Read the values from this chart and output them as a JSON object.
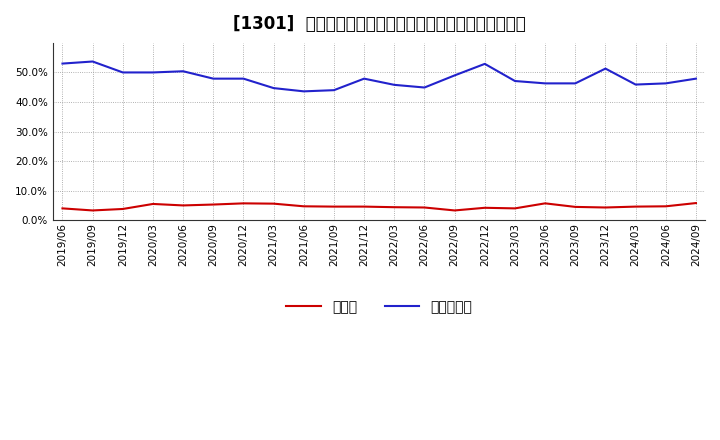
{
  "title": "[1301]  現預金、有利子負債の総資産に対する比率の推移",
  "x_labels": [
    "2019/06",
    "2019/09",
    "2019/12",
    "2020/03",
    "2020/06",
    "2020/09",
    "2020/12",
    "2021/03",
    "2021/06",
    "2021/09",
    "2021/12",
    "2022/03",
    "2022/06",
    "2022/09",
    "2022/12",
    "2023/03",
    "2023/06",
    "2023/09",
    "2023/12",
    "2024/03",
    "2024/06",
    "2024/09"
  ],
  "cash": [
    0.04,
    0.033,
    0.038,
    0.055,
    0.05,
    0.053,
    0.057,
    0.056,
    0.047,
    0.046,
    0.046,
    0.044,
    0.043,
    0.033,
    0.042,
    0.04,
    0.057,
    0.045,
    0.043,
    0.046,
    0.047,
    0.058
  ],
  "debt": [
    0.53,
    0.537,
    0.5,
    0.5,
    0.504,
    0.479,
    0.479,
    0.447,
    0.436,
    0.44,
    0.479,
    0.458,
    0.449,
    0.49,
    0.529,
    0.471,
    0.463,
    0.463,
    0.513,
    0.459,
    0.463,
    0.479
  ],
  "cash_color": "#cc0000",
  "debt_color": "#2222cc",
  "legend_cash": "現預金",
  "legend_debt": "有利子負債",
  "ylim": [
    0.0,
    0.6
  ],
  "yticks": [
    0.0,
    0.1,
    0.2,
    0.3,
    0.4,
    0.5
  ],
  "bg_color": "#ffffff",
  "grid_color": "#999999",
  "title_fontsize": 12,
  "axis_fontsize": 7.5,
  "legend_fontsize": 10
}
